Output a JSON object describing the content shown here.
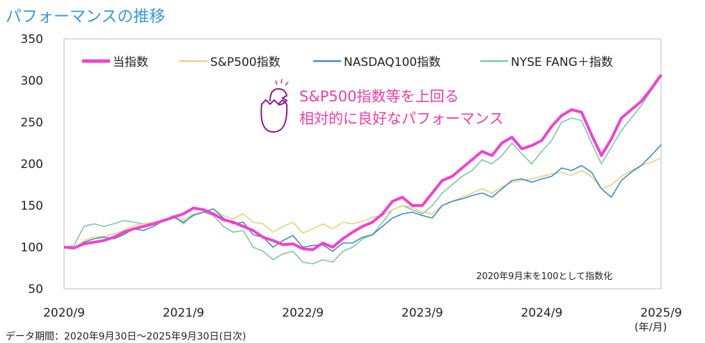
{
  "title": "パフォーマンスの推移",
  "source": "データ期間：2020年9月30日～2025年9月30日(日次)",
  "chart_data": {
    "type": "line",
    "ylim": [
      50,
      350
    ],
    "yticks": [
      "350",
      "300",
      "250",
      "200",
      "150",
      "100",
      "50"
    ],
    "ytick_values": [
      350,
      300,
      250,
      200,
      150,
      100,
      50
    ],
    "xticks": [
      "2020/9",
      "2021/9",
      "2022/9",
      "2023/9",
      "2024/9",
      "2025/9"
    ],
    "xunit": "(年/月)",
    "note": "2020年9月末を100として指数化",
    "annotation": [
      "S&P500指数等を上回る",
      "相対的に良好なパフォーマンス"
    ],
    "legend_position": "top",
    "series": [
      {
        "name": "当指数",
        "color": "#f53fcf",
        "width": 4,
        "values": [
          100,
          99,
          104,
          106,
          108,
          112,
          118,
          122,
          125,
          128,
          132,
          136,
          140,
          147,
          145,
          140,
          133,
          130,
          125,
          120,
          112,
          108,
          103,
          104,
          98,
          97,
          105,
          100,
          110,
          118,
          125,
          130,
          140,
          155,
          160,
          150,
          150,
          165,
          180,
          185,
          195,
          205,
          215,
          210,
          225,
          232,
          218,
          222,
          228,
          245,
          258,
          265,
          262,
          235,
          210,
          230,
          255,
          265,
          275,
          290,
          307
        ]
      },
      {
        "name": "S&P500指数",
        "color": "#e6d27c",
        "width": 1.6,
        "values": [
          100,
          98,
          108,
          112,
          113,
          116,
          120,
          126,
          128,
          130,
          133,
          137,
          133,
          140,
          142,
          146,
          138,
          134,
          140,
          130,
          128,
          118,
          125,
          130,
          117,
          122,
          128,
          122,
          130,
          128,
          131,
          136,
          138,
          145,
          150,
          148,
          142,
          140,
          150,
          155,
          160,
          165,
          170,
          165,
          172,
          178,
          180,
          182,
          185,
          188,
          190,
          186,
          192,
          185,
          170,
          175,
          185,
          192,
          198,
          202,
          207
        ]
      },
      {
        "name": "NASDAQ100指数",
        "color": "#3a8cc8",
        "width": 1.6,
        "values": [
          100,
          98,
          106,
          110,
          112,
          110,
          115,
          122,
          120,
          125,
          132,
          136,
          130,
          138,
          142,
          146,
          135,
          128,
          130,
          115,
          112,
          100,
          108,
          114,
          100,
          102,
          103,
          95,
          105,
          105,
          112,
          115,
          125,
          135,
          140,
          142,
          138,
          135,
          150,
          155,
          158,
          162,
          165,
          160,
          170,
          180,
          182,
          178,
          182,
          185,
          195,
          192,
          198,
          190,
          170,
          160,
          180,
          190,
          198,
          210,
          223
        ]
      },
      {
        "name": "NYSE FANG＋指数",
        "color": "#7cc7a0",
        "width": 1.6,
        "values": [
          100,
          102,
          125,
          128,
          125,
          128,
          132,
          130,
          128,
          130,
          132,
          138,
          128,
          140,
          142,
          138,
          125,
          118,
          120,
          100,
          95,
          85,
          92,
          95,
          82,
          80,
          85,
          82,
          95,
          100,
          110,
          115,
          130,
          145,
          150,
          145,
          140,
          150,
          165,
          175,
          185,
          192,
          205,
          200,
          210,
          225,
          212,
          200,
          215,
          228,
          250,
          255,
          252,
          225,
          200,
          220,
          240,
          255,
          270,
          288,
          305
        ]
      }
    ]
  }
}
